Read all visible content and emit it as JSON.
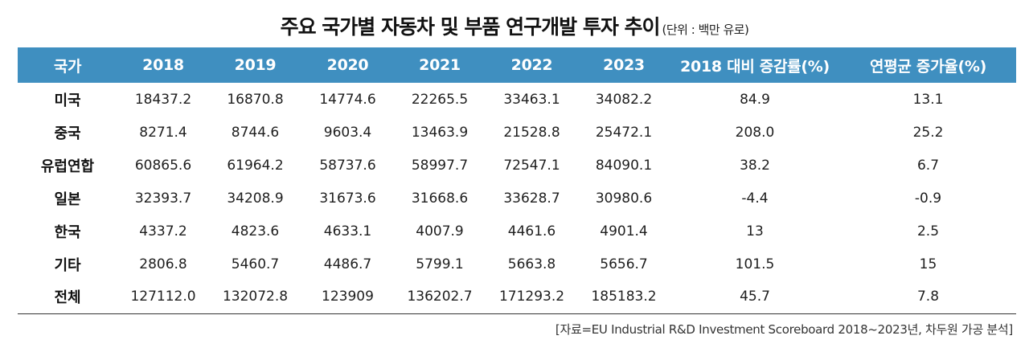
{
  "title": "주요 국가별 자동차 및 부품 연구개발 투자 추이",
  "unit": "(단위 : 백만 유로)",
  "table": {
    "headers": [
      "국가",
      "2018",
      "2019",
      "2020",
      "2021",
      "2022",
      "2023",
      "2018 대비 증감률(%)",
      "연평균 증가율(%)"
    ],
    "rows": [
      [
        "미국",
        "18437.2",
        "16870.8",
        "14774.6",
        "22265.5",
        "33463.1",
        "34082.2",
        "84.9",
        "13.1"
      ],
      [
        "중국",
        "8271.4",
        "8744.6",
        "9603.4",
        "13463.9",
        "21528.8",
        "25472.1",
        "208.0",
        "25.2"
      ],
      [
        "유럽연합",
        "60865.6",
        "61964.2",
        "58737.6",
        "58997.7",
        "72547.1",
        "84090.1",
        "38.2",
        "6.7"
      ],
      [
        "일본",
        "32393.7",
        "34208.9",
        "31673.6",
        "31668.6",
        "33628.7",
        "30980.6",
        "-4.4",
        "-0.9"
      ],
      [
        "한국",
        "4337.2",
        "4823.6",
        "4633.1",
        "4007.9",
        "4461.6",
        "4901.4",
        "13",
        "2.5"
      ],
      [
        "기타",
        "2806.8",
        "5460.7",
        "4486.7",
        "5799.1",
        "5663.8",
        "5656.7",
        "101.5",
        "15"
      ],
      [
        "전체",
        "127112.0",
        "132072.8",
        "123909",
        "136202.7",
        "171293.2",
        "185183.2",
        "45.7",
        "7.8"
      ]
    ]
  },
  "source": "[자료=EU Industrial R&D Investment Scoreboard 2018~2023년, 차두원 가공 분석]",
  "colors": {
    "header_bg": "#3f8fc0",
    "header_text": "#ffffff",
    "rule": "#333333"
  }
}
